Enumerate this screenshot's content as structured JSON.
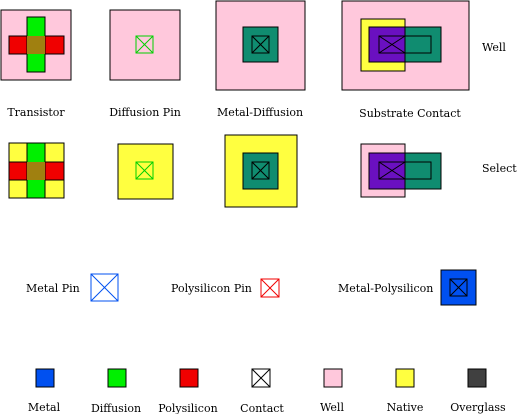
{
  "colors": {
    "metal": "#0050f0",
    "diffusion": "#00f000",
    "polysilicon": "#f00000",
    "contact": "#ffffff",
    "well": "#ffc8dc",
    "native": "#ffff40",
    "overglass": "#404040",
    "metal_diffusion": "#108c70",
    "poly_diffusion": "#a08010",
    "metal_poly_substrate": "#6a10c0"
  },
  "row_labels": {
    "well": "Well",
    "select": "Select"
  },
  "cells": [
    {
      "id": "transistor",
      "label": "Transistor"
    },
    {
      "id": "diffusion-pin",
      "label": "Diffusion Pin"
    },
    {
      "id": "metal-diffusion",
      "label": "Metal-Diffusion"
    },
    {
      "id": "substrate-contact",
      "label": "Substrate Contact"
    }
  ],
  "pins": [
    {
      "id": "metal-pin",
      "label": "Metal Pin"
    },
    {
      "id": "polysilicon-pin",
      "label": "Polysilicon Pin"
    },
    {
      "id": "metal-polysilicon",
      "label": "Metal-Polysilicon"
    }
  ],
  "legend": [
    {
      "id": "metal",
      "label": "Metal"
    },
    {
      "id": "diffusion",
      "label": "Diffusion"
    },
    {
      "id": "polysilicon",
      "label": "Polysilicon"
    },
    {
      "id": "contact",
      "label": "Contact"
    },
    {
      "id": "well",
      "label": "Well"
    },
    {
      "id": "native",
      "label": "Native"
    },
    {
      "id": "overglass",
      "label": "Overglass"
    }
  ]
}
